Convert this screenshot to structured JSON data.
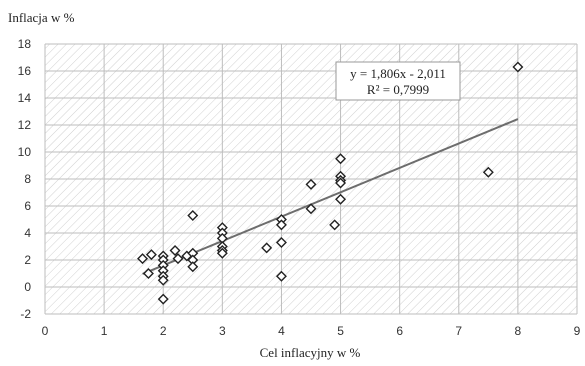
{
  "chart_data": {
    "type": "scatter",
    "ylabel": "Inflacja  w %",
    "xlabel": "Cel inflacyjny   w %",
    "xlim": [
      0,
      9
    ],
    "ylim": [
      -2,
      18
    ],
    "x_ticks": [
      "0",
      "1",
      "2",
      "3",
      "4",
      "5",
      "6",
      "7",
      "8",
      "9"
    ],
    "y_ticks": [
      "-2",
      "0",
      "2",
      "4",
      "6",
      "8",
      "10",
      "12",
      "14",
      "16",
      "18"
    ],
    "grid": true,
    "marker": "diamond",
    "points": [
      {
        "x": 1.65,
        "y": 2.1
      },
      {
        "x": 1.75,
        "y": 1.0
      },
      {
        "x": 1.8,
        "y": 2.4
      },
      {
        "x": 2.0,
        "y": 2.3
      },
      {
        "x": 2.0,
        "y": 2.0
      },
      {
        "x": 2.0,
        "y": 1.6
      },
      {
        "x": 2.0,
        "y": 1.2
      },
      {
        "x": 2.0,
        "y": 0.8
      },
      {
        "x": 2.0,
        "y": 0.5
      },
      {
        "x": 2.0,
        "y": -0.9
      },
      {
        "x": 2.2,
        "y": 2.7
      },
      {
        "x": 2.25,
        "y": 2.1
      },
      {
        "x": 2.4,
        "y": 2.3
      },
      {
        "x": 2.5,
        "y": 5.3
      },
      {
        "x": 2.5,
        "y": 2.5
      },
      {
        "x": 2.5,
        "y": 2.0
      },
      {
        "x": 2.5,
        "y": 1.5
      },
      {
        "x": 3.0,
        "y": 4.4
      },
      {
        "x": 3.0,
        "y": 4.0
      },
      {
        "x": 3.0,
        "y": 3.6
      },
      {
        "x": 3.0,
        "y": 3.0
      },
      {
        "x": 3.0,
        "y": 2.7
      },
      {
        "x": 3.0,
        "y": 2.5
      },
      {
        "x": 3.75,
        "y": 2.9
      },
      {
        "x": 4.0,
        "y": 5.0
      },
      {
        "x": 4.0,
        "y": 4.6
      },
      {
        "x": 4.0,
        "y": 3.3
      },
      {
        "x": 4.0,
        "y": 0.8
      },
      {
        "x": 4.5,
        "y": 7.6
      },
      {
        "x": 4.5,
        "y": 5.8
      },
      {
        "x": 4.9,
        "y": 4.6
      },
      {
        "x": 5.0,
        "y": 9.5
      },
      {
        "x": 5.0,
        "y": 8.2
      },
      {
        "x": 5.0,
        "y": 7.9
      },
      {
        "x": 5.0,
        "y": 7.7
      },
      {
        "x": 5.0,
        "y": 6.5
      },
      {
        "x": 7.5,
        "y": 8.5
      },
      {
        "x": 8.0,
        "y": 16.3
      }
    ],
    "trendline": {
      "slope": 1.806,
      "intercept": -2.011,
      "x_start": 1.65,
      "x_end": 8.0
    },
    "equation_text": "y = 1,806x - 2,011",
    "r2_text": "R² = 0,7999"
  }
}
